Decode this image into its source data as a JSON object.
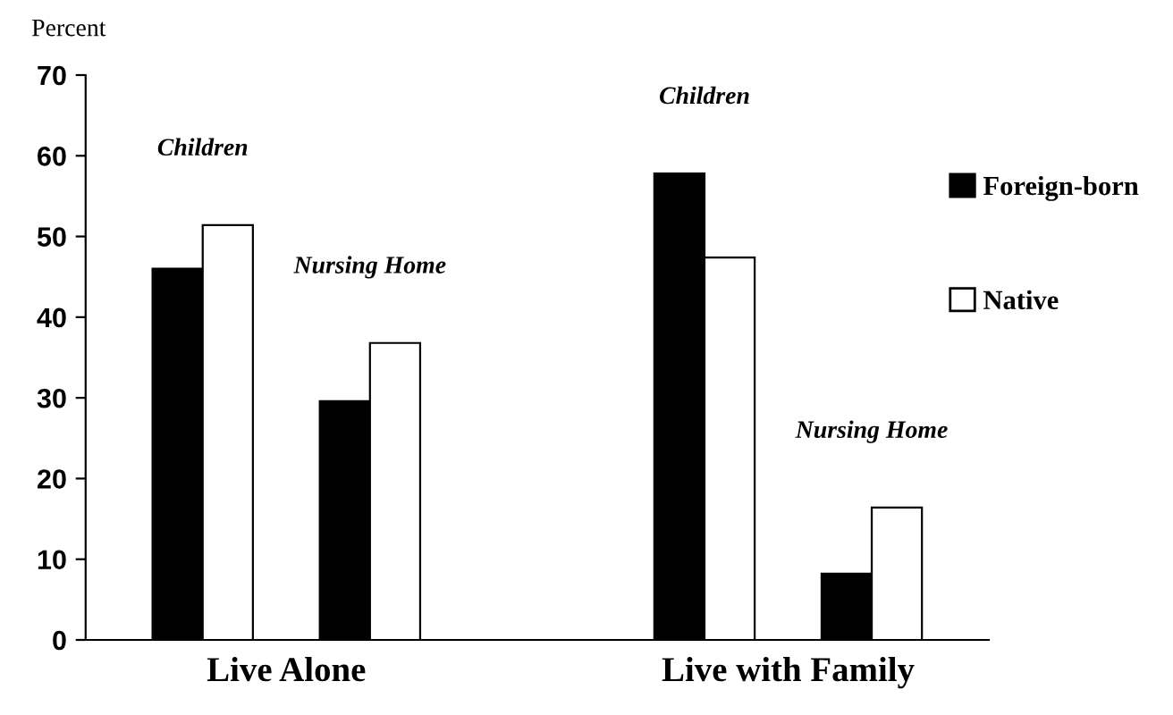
{
  "chart_data": {
    "type": "bar",
    "ylabel": "Percent",
    "categories": [
      "Children",
      "Nursing Home",
      "Children",
      "Nursing Home"
    ],
    "series": [
      {
        "name": "Foreign-born",
        "color": "#000000",
        "values": [
          46,
          29.6,
          57.8,
          8.2
        ]
      },
      {
        "name": "Native",
        "color": "#ffffff",
        "values": [
          51.4,
          36.8,
          47.4,
          16.4
        ]
      }
    ],
    "annotations": [
      "Live Alone",
      "Live with Family"
    ],
    "ylim": [
      0,
      70
    ],
    "yticks": [
      0,
      10,
      20,
      30,
      40,
      50,
      60,
      70
    ],
    "grid": false,
    "legend": "right"
  }
}
